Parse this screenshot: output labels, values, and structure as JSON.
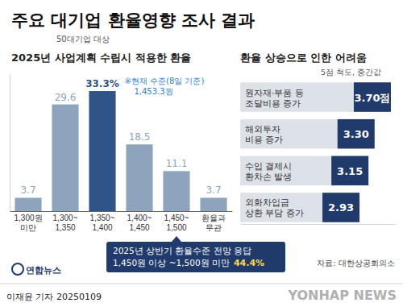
{
  "page": {
    "title": "주요 대기업 환율영향 조사 결과",
    "subtitle": "50대기업 대상",
    "source": "자료: 대한상공회의소",
    "credit": "이재윤 기자 20250109",
    "logo": "연합뉴스",
    "watermark": "YONHAP NEWS"
  },
  "chart_data": [
    {
      "type": "bar",
      "title": "2025년 사업계획 수립시 적용한 환율",
      "categories": [
        "1,300원\n미만",
        "1,300~\n1,350",
        "1,350~\n1,400",
        "1,400~\n1,450",
        "1,450~\n1,500",
        "환율과\n무관"
      ],
      "values": [
        3.7,
        29.6,
        33.3,
        18.5,
        11.1,
        3.7
      ],
      "value_labels": [
        "3.7",
        "29.6",
        "33.3%",
        "18.5",
        "11.1",
        "3.7"
      ],
      "colors": [
        "#8ea4bd",
        "#8ea4bd",
        "#2f5488",
        "#8ea4bd",
        "#8ea4bd",
        "#8ea4bd"
      ],
      "ylim": [
        0,
        38
      ],
      "yticks": [],
      "tick_labels": "x",
      "data_labels": true,
      "annotations": [
        {
          "text": "※현재 수준(8일 기준)\n1,453.3원"
        },
        {
          "text": "2025년 상반기 환율수준 전망 응답\n1,450원 이상 ~1,500원 미만",
          "emphasis": "44.4%"
        }
      ]
    },
    {
      "type": "bar",
      "orientation": "horizontal",
      "title": "환율 상승으로 인한 어려움",
      "subtitle": "5점 척도, 중간값",
      "categories": [
        "원자재·부품 등\n조달비용 증가",
        "해외투자\n비용 증가",
        "수입 결제시\n환차손 발생",
        "외화차입금\n상환 부담 증가"
      ],
      "values": [
        3.7,
        3.3,
        3.15,
        2.93
      ],
      "value_labels": [
        "3.70점",
        "3.30",
        "3.15",
        "2.93"
      ],
      "color": "#dde2e8",
      "xlim": [
        0,
        3.8
      ],
      "xticks": [],
      "tick_labels": "y",
      "data_labels": true
    }
  ]
}
